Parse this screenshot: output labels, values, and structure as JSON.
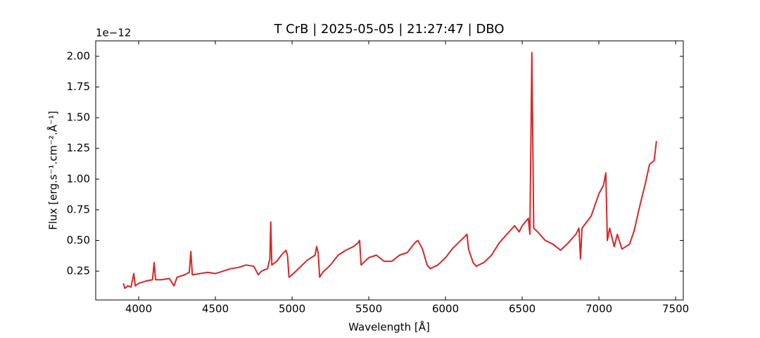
{
  "chart_data": {
    "type": "line",
    "title": "T CrB | 2025-05-05 | 21:27:47 | DBO",
    "x_label": "Wavelength [Å]",
    "y_label": "Flux [erg.s⁻¹.cm⁻².Å⁻¹]",
    "y_offset_label": "1e−12",
    "xlim": [
      3720,
      7550
    ],
    "ylim": [
      0.015,
      2.126
    ],
    "xticks": [
      4000,
      4500,
      5000,
      5500,
      6000,
      6500,
      7000,
      7500
    ],
    "yticks": [
      0.25,
      {
        "value": 0.5,
        "label": "0.50"
      },
      0.75,
      {
        "value": 1.0,
        "label": "1.00"
      },
      1.25,
      {
        "value": 1.5,
        "label": "1.50"
      },
      1.75,
      {
        "value": 2.0,
        "label": "2.00"
      }
    ],
    "x": [
      3900,
      3910,
      3930,
      3950,
      3968,
      3978,
      4000,
      4050,
      4090,
      4101,
      4110,
      4150,
      4200,
      4230,
      4250,
      4300,
      4330,
      4340,
      4350,
      4400,
      4450,
      4500,
      4550,
      4600,
      4650,
      4700,
      4750,
      4780,
      4800,
      4840,
      4855,
      4861,
      4868,
      4900,
      4930,
      4960,
      4970,
      4980,
      5000,
      5050,
      5100,
      5150,
      5160,
      5170,
      5180,
      5200,
      5250,
      5300,
      5350,
      5400,
      5430,
      5440,
      5450,
      5500,
      5550,
      5600,
      5650,
      5700,
      5750,
      5800,
      5820,
      5850,
      5880,
      5900,
      5950,
      6000,
      6050,
      6100,
      6140,
      6150,
      6180,
      6200,
      6250,
      6300,
      6350,
      6400,
      6450,
      6480,
      6500,
      6540,
      6550,
      6563,
      6575,
      6600,
      6650,
      6700,
      6750,
      6800,
      6850,
      6870,
      6880,
      6890,
      6950,
      7000,
      7030,
      7045,
      7055,
      7070,
      7100,
      7120,
      7150,
      7200,
      7230,
      7270,
      7300,
      7330,
      7360,
      7375
    ],
    "series": [
      {
        "name": "T CrB",
        "color": "#d62728",
        "values": [
          0.15,
          0.11,
          0.13,
          0.12,
          0.23,
          0.13,
          0.15,
          0.17,
          0.18,
          0.32,
          0.18,
          0.18,
          0.19,
          0.13,
          0.2,
          0.22,
          0.24,
          0.41,
          0.22,
          0.23,
          0.24,
          0.23,
          0.25,
          0.27,
          0.28,
          0.3,
          0.29,
          0.22,
          0.25,
          0.27,
          0.35,
          0.65,
          0.3,
          0.33,
          0.38,
          0.42,
          0.38,
          0.2,
          0.22,
          0.28,
          0.34,
          0.38,
          0.45,
          0.4,
          0.2,
          0.24,
          0.3,
          0.38,
          0.42,
          0.45,
          0.48,
          0.5,
          0.3,
          0.36,
          0.38,
          0.33,
          0.33,
          0.38,
          0.4,
          0.48,
          0.5,
          0.43,
          0.3,
          0.27,
          0.3,
          0.36,
          0.44,
          0.5,
          0.55,
          0.43,
          0.32,
          0.29,
          0.32,
          0.38,
          0.48,
          0.55,
          0.62,
          0.57,
          0.62,
          0.68,
          0.55,
          2.03,
          0.6,
          0.57,
          0.5,
          0.47,
          0.42,
          0.48,
          0.55,
          0.6,
          0.35,
          0.6,
          0.7,
          0.88,
          0.95,
          1.05,
          0.5,
          0.6,
          0.45,
          0.55,
          0.43,
          0.47,
          0.58,
          0.8,
          0.95,
          1.12,
          1.15,
          1.31
        ]
      }
    ]
  }
}
